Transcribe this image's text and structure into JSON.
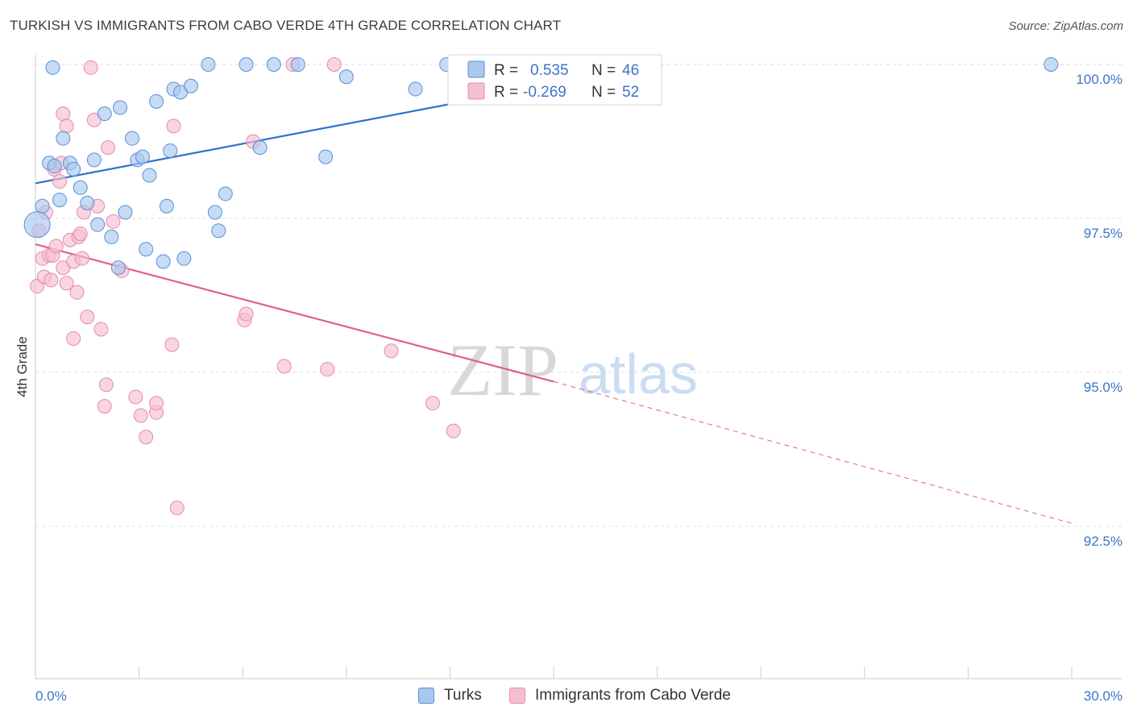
{
  "title": "TURKISH VS IMMIGRANTS FROM CABO VERDE 4TH GRADE CORRELATION CHART",
  "source": "Source: ZipAtlas.com",
  "watermark": {
    "zip": "ZIP",
    "atlas": "atlas"
  },
  "colors": {
    "blue_fill": "#a9c8f0",
    "blue_stroke": "#5b8fd6",
    "blue_line": "#2f72cc",
    "pink_fill": "#f6bfd1",
    "pink_stroke": "#e88aa8",
    "pink_line": "#e0608a",
    "tick_text": "#3b74c8",
    "grid": "#dddddd"
  },
  "legend": {
    "r_label": "R =",
    "n_label": "N =",
    "rows": [
      {
        "r": "0.535",
        "n": "46"
      },
      {
        "r": "-0.269",
        "n": "52"
      }
    ]
  },
  "chart_data": {
    "type": "scatter",
    "title": "TURKISH VS IMMIGRANTS FROM CABO VERDE 4TH GRADE CORRELATION CHART",
    "xlabel": "",
    "ylabel": "4th Grade",
    "xlim": [
      0.0,
      30.0
    ],
    "ylim": [
      90.5,
      100.4
    ],
    "x_ticks": [
      "0.0%",
      "30.0%"
    ],
    "y_ticks": [
      {
        "value": 100.0,
        "label": "100.0%"
      },
      {
        "value": 97.5,
        "label": "97.5%"
      },
      {
        "value": 95.0,
        "label": "95.0%"
      },
      {
        "value": 92.5,
        "label": "92.5%"
      }
    ],
    "grid": true,
    "legend_position": "top-center",
    "series": [
      {
        "name": "Turks",
        "r": 0.535,
        "n": 46,
        "trend": {
          "x": [
            0.0,
            18.0
          ],
          "y": [
            98.07,
            100.0
          ]
        },
        "points": [
          [
            0.2,
            97.7
          ],
          [
            0.4,
            98.4
          ],
          [
            0.55,
            98.35
          ],
          [
            0.7,
            97.8
          ],
          [
            0.8,
            98.8
          ],
          [
            1.0,
            98.4
          ],
          [
            1.1,
            98.3
          ],
          [
            1.3,
            98.0
          ],
          [
            1.5,
            97.75
          ],
          [
            1.7,
            98.45
          ],
          [
            1.8,
            97.4
          ],
          [
            2.0,
            99.2
          ],
          [
            2.2,
            97.2
          ],
          [
            2.4,
            96.7
          ],
          [
            2.45,
            99.3
          ],
          [
            2.6,
            97.6
          ],
          [
            2.8,
            98.8
          ],
          [
            2.95,
            98.45
          ],
          [
            3.1,
            98.5
          ],
          [
            3.2,
            97.0
          ],
          [
            3.3,
            98.2
          ],
          [
            3.5,
            99.4
          ],
          [
            3.7,
            96.8
          ],
          [
            3.8,
            97.7
          ],
          [
            3.9,
            98.6
          ],
          [
            4.0,
            99.6
          ],
          [
            4.2,
            99.55
          ],
          [
            4.3,
            96.85
          ],
          [
            4.5,
            99.65
          ],
          [
            5.0,
            100.0
          ],
          [
            5.2,
            97.6
          ],
          [
            5.3,
            97.3
          ],
          [
            5.5,
            97.9
          ],
          [
            6.1,
            100.0
          ],
          [
            6.5,
            98.65
          ],
          [
            6.9,
            100.0
          ],
          [
            7.6,
            100.0
          ],
          [
            8.4,
            98.5
          ],
          [
            9.0,
            99.8
          ],
          [
            11.0,
            99.6
          ],
          [
            11.9,
            100.0
          ],
          [
            12.3,
            100.0
          ],
          [
            12.5,
            100.0
          ],
          [
            29.4,
            100.0
          ],
          [
            0.5,
            99.95
          ],
          [
            0.05,
            97.4
          ]
        ]
      },
      {
        "name": "Immigrants from Cabo Verde",
        "r": -0.269,
        "n": 52,
        "trend": {
          "x": [
            0.0,
            15.0
          ],
          "y": [
            97.08,
            94.85
          ]
        },
        "trend_dashed": {
          "x": [
            15.0,
            30.0
          ],
          "y": [
            94.85,
            92.55
          ]
        },
        "points": [
          [
            0.05,
            96.4
          ],
          [
            0.1,
            97.3
          ],
          [
            0.2,
            96.85
          ],
          [
            0.25,
            96.55
          ],
          [
            0.3,
            97.6
          ],
          [
            0.4,
            96.9
          ],
          [
            0.5,
            96.9
          ],
          [
            0.55,
            98.3
          ],
          [
            0.6,
            97.05
          ],
          [
            0.7,
            98.1
          ],
          [
            0.75,
            98.4
          ],
          [
            0.8,
            96.7
          ],
          [
            0.8,
            99.2
          ],
          [
            0.9,
            96.45
          ],
          [
            0.9,
            99.0
          ],
          [
            1.0,
            97.15
          ],
          [
            1.1,
            96.8
          ],
          [
            1.1,
            95.55
          ],
          [
            1.2,
            96.3
          ],
          [
            1.25,
            97.2
          ],
          [
            1.3,
            97.25
          ],
          [
            1.35,
            96.85
          ],
          [
            1.4,
            97.6
          ],
          [
            1.5,
            95.9
          ],
          [
            1.6,
            99.95
          ],
          [
            1.7,
            99.1
          ],
          [
            1.8,
            97.7
          ],
          [
            1.9,
            95.7
          ],
          [
            2.0,
            94.45
          ],
          [
            2.05,
            94.8
          ],
          [
            2.1,
            98.65
          ],
          [
            2.25,
            97.45
          ],
          [
            2.5,
            96.65
          ],
          [
            2.9,
            94.6
          ],
          [
            3.05,
            94.3
          ],
          [
            3.2,
            93.95
          ],
          [
            3.5,
            94.35
          ],
          [
            3.5,
            94.5
          ],
          [
            3.95,
            95.45
          ],
          [
            4.0,
            99.0
          ],
          [
            4.1,
            92.8
          ],
          [
            6.05,
            95.85
          ],
          [
            6.1,
            95.95
          ],
          [
            6.3,
            98.75
          ],
          [
            7.2,
            95.1
          ],
          [
            7.45,
            100.0
          ],
          [
            8.45,
            95.05
          ],
          [
            8.65,
            100.0
          ],
          [
            10.3,
            95.35
          ],
          [
            11.5,
            94.5
          ],
          [
            12.1,
            94.05
          ],
          [
            0.45,
            96.5
          ]
        ]
      }
    ]
  }
}
